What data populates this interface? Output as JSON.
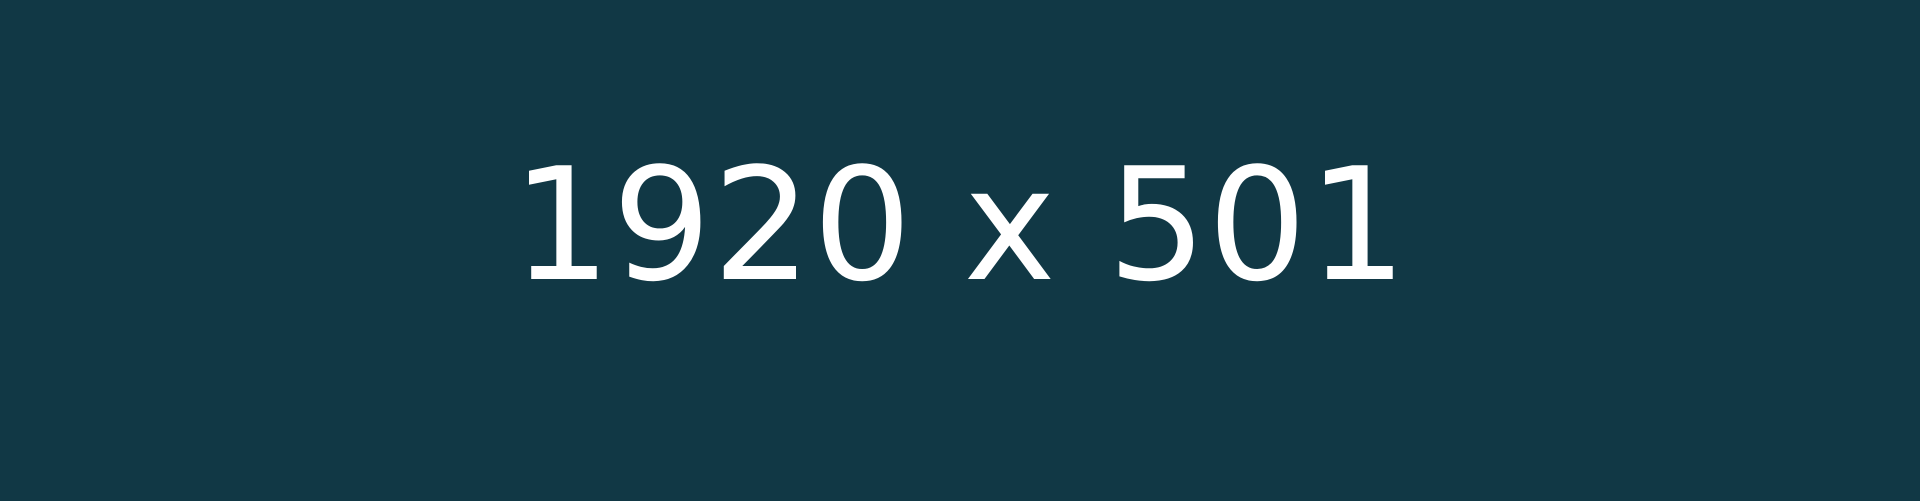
{
  "placeholder": {
    "text": "1920 x 501",
    "background_color": "#113845",
    "text_color": "#ffffff"
  }
}
